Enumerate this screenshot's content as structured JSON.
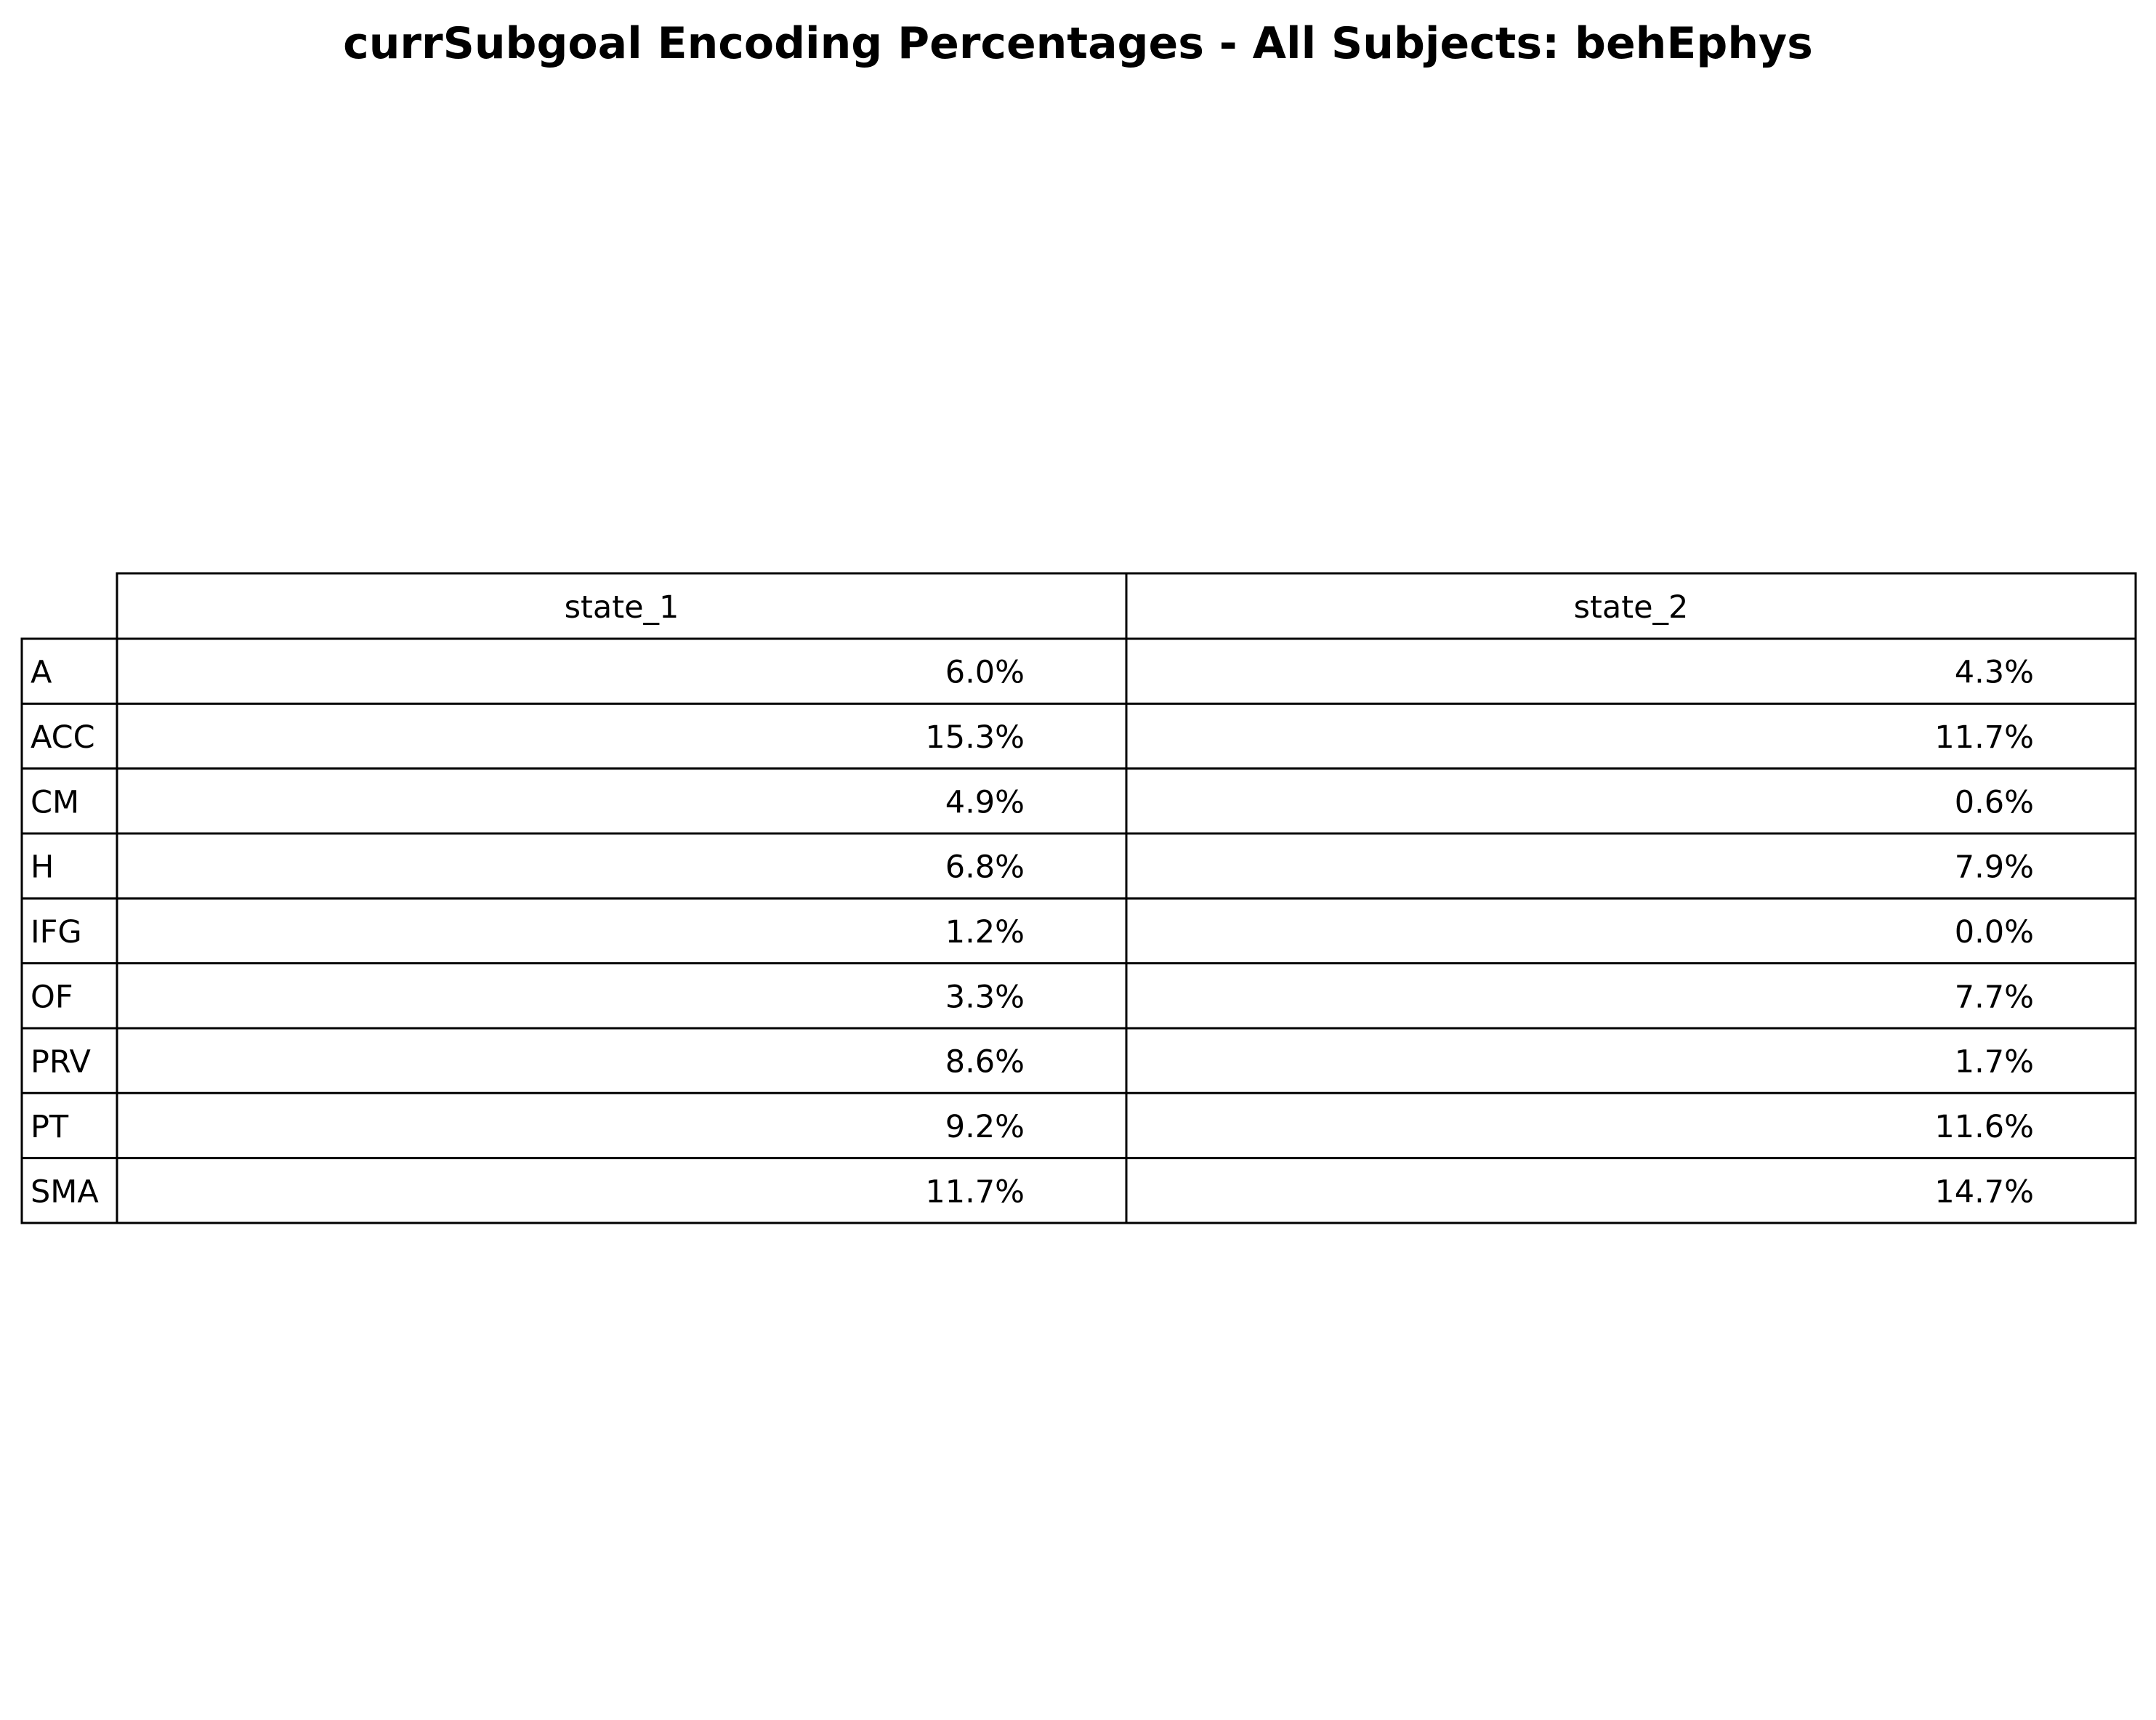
{
  "chart_data": {
    "type": "table",
    "title": "currSubgoal Encoding Percentages - All Subjects: behEphys",
    "columns": [
      "state_1",
      "state_2"
    ],
    "rows": [
      {
        "label": "A",
        "values": [
          "6.0%",
          "4.3%"
        ]
      },
      {
        "label": "ACC",
        "values": [
          "15.3%",
          "11.7%"
        ]
      },
      {
        "label": "CM",
        "values": [
          "4.9%",
          "0.6%"
        ]
      },
      {
        "label": "H",
        "values": [
          "6.8%",
          "7.9%"
        ]
      },
      {
        "label": "IFG",
        "values": [
          "1.2%",
          "0.0%"
        ]
      },
      {
        "label": "OF",
        "values": [
          "3.3%",
          "7.7%"
        ]
      },
      {
        "label": "PRV",
        "values": [
          "8.6%",
          "1.7%"
        ]
      },
      {
        "label": "PT",
        "values": [
          "9.2%",
          "11.6%"
        ]
      },
      {
        "label": "SMA",
        "values": [
          "11.7%",
          "14.7%"
        ]
      }
    ]
  }
}
